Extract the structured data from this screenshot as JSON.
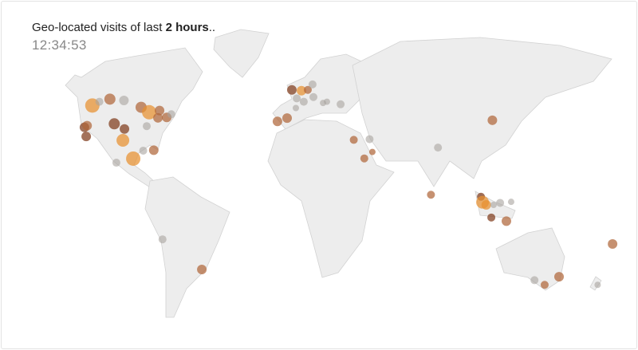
{
  "header": {
    "title_prefix": "Geo-located visits of last ",
    "title_bold": "2 hours",
    "title_suffix": "..",
    "clock": "12:34:53"
  },
  "colors": {
    "high": "#e8902f",
    "medium": "#b0673a",
    "dark": "#7f3c1c",
    "low": "#a9a39f",
    "land": "#ededed",
    "border": "#d2d2d2"
  },
  "visits": [
    {
      "lat": 45.5,
      "lon": -116,
      "level": "high",
      "r": 9
    },
    {
      "lat": 47,
      "lon": -112,
      "level": "low",
      "r": 5
    },
    {
      "lat": 48,
      "lon": -106,
      "level": "medium",
      "r": 7
    },
    {
      "lat": 47.5,
      "lon": -98,
      "level": "low",
      "r": 6
    },
    {
      "lat": 36.5,
      "lon": -120.5,
      "level": "dark",
      "r": 6
    },
    {
      "lat": 37.2,
      "lon": -119,
      "level": "medium",
      "r": 6
    },
    {
      "lat": 32.5,
      "lon": -119.5,
      "level": "dark",
      "r": 6
    },
    {
      "lat": 38,
      "lon": -103.5,
      "level": "dark",
      "r": 7
    },
    {
      "lat": 35.8,
      "lon": -97.7,
      "level": "dark",
      "r": 6
    },
    {
      "lat": 30.8,
      "lon": -98.6,
      "level": "high",
      "r": 8
    },
    {
      "lat": 22.4,
      "lon": -92.7,
      "level": "high",
      "r": 9
    },
    {
      "lat": 20.5,
      "lon": -102.3,
      "level": "low",
      "r": 5
    },
    {
      "lat": 44.8,
      "lon": -88.2,
      "level": "medium",
      "r": 7
    },
    {
      "lat": 42.8,
      "lon": -83.6,
      "level": "high",
      "r": 9
    },
    {
      "lat": 43.5,
      "lon": -77.7,
      "level": "medium",
      "r": 6
    },
    {
      "lat": 37,
      "lon": -85,
      "level": "low",
      "r": 5
    },
    {
      "lat": 40.5,
      "lon": -78.6,
      "level": "medium",
      "r": 6
    },
    {
      "lat": 40.7,
      "lon": -73.6,
      "level": "medium",
      "r": 6
    },
    {
      "lat": 42,
      "lon": -71,
      "level": "low",
      "r": 5
    },
    {
      "lat": 26.1,
      "lon": -87,
      "level": "low",
      "r": 5
    },
    {
      "lat": 26.3,
      "lon": -81,
      "level": "medium",
      "r": 6
    },
    {
      "lat": -16.8,
      "lon": -76,
      "level": "low",
      "r": 5
    },
    {
      "lat": -30.8,
      "lon": -53.6,
      "level": "medium",
      "r": 6
    },
    {
      "lat": 39,
      "lon": -10.5,
      "level": "medium",
      "r": 6
    },
    {
      "lat": 40.4,
      "lon": -5,
      "level": "medium",
      "r": 6
    },
    {
      "lat": 51.5,
      "lon": -2.3,
      "level": "dark",
      "r": 6
    },
    {
      "lat": 51.2,
      "lon": 3.2,
      "level": "high",
      "r": 6
    },
    {
      "lat": 48.3,
      "lon": 0.5,
      "level": "low",
      "r": 5
    },
    {
      "lat": 51.5,
      "lon": 6.8,
      "level": "medium",
      "r": 5
    },
    {
      "lat": 53.5,
      "lon": 9.5,
      "level": "low",
      "r": 5
    },
    {
      "lat": 47,
      "lon": 4.5,
      "level": "low",
      "r": 5
    },
    {
      "lat": 48.8,
      "lon": 10,
      "level": "low",
      "r": 5
    },
    {
      "lat": 44.5,
      "lon": 0,
      "level": "low",
      "r": 4
    },
    {
      "lat": 46.5,
      "lon": 15.5,
      "level": "low",
      "r": 4
    },
    {
      "lat": 47,
      "lon": 17.7,
      "level": "low",
      "r": 4
    },
    {
      "lat": 46,
      "lon": 25.5,
      "level": "low",
      "r": 5
    },
    {
      "lat": 31,
      "lon": 33,
      "level": "medium",
      "r": 5
    },
    {
      "lat": 31.3,
      "lon": 42,
      "level": "low",
      "r": 5
    },
    {
      "lat": 25.5,
      "lon": 43.6,
      "level": "medium",
      "r": 4
    },
    {
      "lat": 22.5,
      "lon": 39,
      "level": "medium",
      "r": 5
    },
    {
      "lat": 27.5,
      "lon": 81,
      "level": "low",
      "r": 5
    },
    {
      "lat": 5,
      "lon": 77,
      "level": "medium",
      "r": 5
    },
    {
      "lat": 39.5,
      "lon": 112,
      "level": "medium",
      "r": 6
    },
    {
      "lat": 4,
      "lon": 105.5,
      "level": "dark",
      "r": 5
    },
    {
      "lat": 1.3,
      "lon": 106.4,
      "level": "high",
      "r": 8
    },
    {
      "lat": 0,
      "lon": 108.5,
      "level": "high",
      "r": 6
    },
    {
      "lat": 0,
      "lon": 112.7,
      "level": "low",
      "r": 4
    },
    {
      "lat": 1,
      "lon": 116.4,
      "level": "low",
      "r": 5
    },
    {
      "lat": -6.2,
      "lon": 111.4,
      "level": "dark",
      "r": 5
    },
    {
      "lat": -8,
      "lon": 120,
      "level": "medium",
      "r": 6
    },
    {
      "lat": 1.5,
      "lon": 122.7,
      "level": "low",
      "r": 4
    },
    {
      "lat": -34,
      "lon": 150,
      "level": "medium",
      "r": 6
    },
    {
      "lat": -37.5,
      "lon": 141.8,
      "level": "medium",
      "r": 5
    },
    {
      "lat": -35.5,
      "lon": 136,
      "level": "low",
      "r": 5
    },
    {
      "lat": -37.5,
      "lon": 172,
      "level": "low",
      "r": 4
    },
    {
      "lat": -19,
      "lon": 180.5,
      "level": "medium",
      "r": 6
    }
  ]
}
